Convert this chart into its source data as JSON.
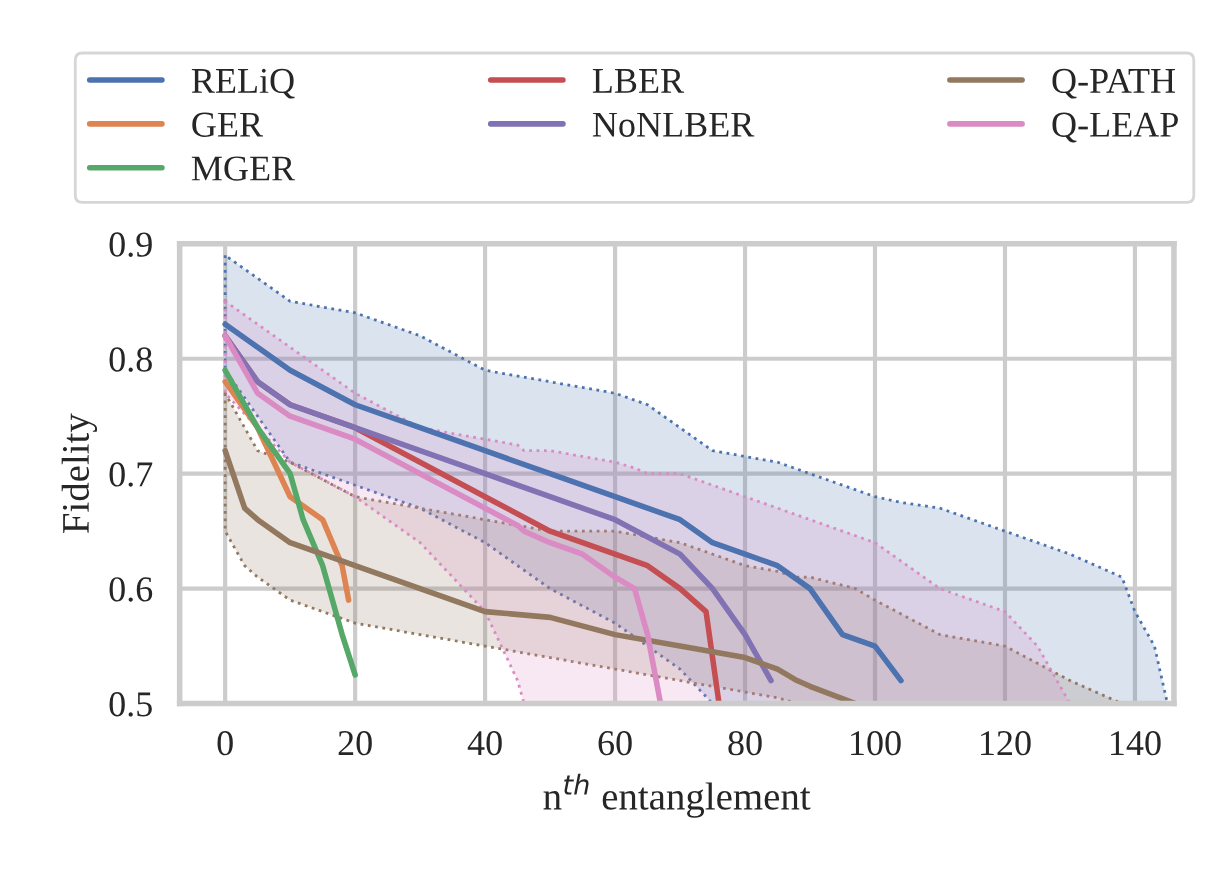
{
  "chart_data": {
    "type": "line",
    "xlabel": "n$^{th}$ entanglement",
    "ylabel": "Fidelity",
    "xlim": [
      -7,
      146
    ],
    "ylim": [
      0.5,
      0.9
    ],
    "xticks": [
      0,
      20,
      40,
      60,
      80,
      100,
      120,
      140
    ],
    "yticks": [
      0.5,
      0.6,
      0.7,
      0.8,
      0.9
    ],
    "grid": true,
    "legend": "top",
    "line_style": "solid",
    "marker": "none",
    "series": [
      {
        "name": "RELiQ",
        "color": "#4c72b0",
        "x": [
          0,
          5,
          10,
          20,
          30,
          40,
          50,
          60,
          65,
          70,
          75,
          80,
          85,
          90,
          95,
          100,
          104,
          110,
          120,
          130,
          138,
          140,
          143,
          145
        ],
        "values": [
          0.83,
          0.81,
          0.79,
          0.76,
          0.74,
          0.72,
          0.7,
          0.68,
          0.67,
          0.66,
          0.64,
          0.63,
          0.62,
          0.6,
          0.56,
          0.55,
          0.52,
          null,
          null,
          null,
          null,
          null,
          null,
          null
        ],
        "upper": [
          0.89,
          0.87,
          0.85,
          0.84,
          0.82,
          0.79,
          0.78,
          0.77,
          0.76,
          0.74,
          0.72,
          0.715,
          0.71,
          0.7,
          0.69,
          0.68,
          0.675,
          0.67,
          0.65,
          0.63,
          0.61,
          0.58,
          0.55,
          0.5
        ],
        "lower": [
          0.79,
          0.75,
          0.71,
          0.69,
          0.67,
          0.64,
          0.6,
          0.57,
          0.55,
          0.53,
          0.5,
          0.5,
          0.5,
          0.5,
          0.5,
          0.5,
          0.5,
          0.5,
          0.5,
          0.5,
          0.5,
          0.5,
          0.5,
          0.5
        ]
      },
      {
        "name": "GER",
        "color": "#dd8452",
        "x": [
          0,
          5,
          10,
          15,
          18,
          19
        ],
        "values": [
          0.78,
          0.74,
          0.68,
          0.66,
          0.62,
          0.59
        ]
      },
      {
        "name": "MGER",
        "color": "#55a868",
        "x": [
          0,
          5,
          10,
          12,
          15,
          18,
          20
        ],
        "values": [
          0.79,
          0.74,
          0.7,
          0.66,
          0.62,
          0.56,
          0.525
        ]
      },
      {
        "name": "LBER",
        "color": "#c44e52",
        "x": [
          0,
          5,
          10,
          20,
          30,
          40,
          50,
          60,
          65,
          70,
          74,
          76
        ],
        "values": [
          0.82,
          0.78,
          0.76,
          0.74,
          0.71,
          0.68,
          0.65,
          0.63,
          0.62,
          0.6,
          0.58,
          0.5
        ]
      },
      {
        "name": "NoNLBER",
        "color": "#8172b3",
        "x": [
          0,
          5,
          10,
          20,
          30,
          40,
          50,
          60,
          70,
          75,
          80,
          84
        ],
        "values": [
          0.82,
          0.78,
          0.76,
          0.74,
          0.72,
          0.7,
          0.68,
          0.66,
          0.63,
          0.6,
          0.56,
          0.52
        ]
      },
      {
        "name": "Q-PATH",
        "color": "#937860",
        "x": [
          0,
          3,
          5,
          10,
          20,
          30,
          40,
          50,
          60,
          70,
          80,
          85,
          88,
          90,
          97,
          100,
          110,
          120,
          130,
          138
        ],
        "values": [
          0.72,
          0.67,
          0.66,
          0.64,
          0.62,
          0.6,
          0.58,
          0.575,
          0.56,
          0.55,
          0.54,
          0.53,
          0.52,
          0.515,
          0.5,
          null,
          null,
          null,
          null,
          null
        ],
        "upper": [
          0.77,
          0.74,
          0.72,
          0.71,
          0.68,
          0.67,
          0.66,
          0.65,
          0.65,
          0.64,
          0.62,
          0.615,
          0.61,
          0.61,
          0.6,
          0.59,
          0.56,
          0.55,
          0.52,
          0.5
        ],
        "lower": [
          0.65,
          0.62,
          0.61,
          0.59,
          0.57,
          0.56,
          0.55,
          0.54,
          0.53,
          0.52,
          0.51,
          0.505,
          0.5,
          0.5,
          0.5,
          0.5,
          0.5,
          0.5,
          0.5,
          0.5
        ]
      },
      {
        "name": "Q-LEAP",
        "color": "#da8bc3",
        "x": [
          0,
          5,
          10,
          20,
          30,
          40,
          45,
          46,
          50,
          55,
          60,
          63,
          65,
          67,
          70,
          80,
          90,
          100,
          110,
          120,
          125,
          130
        ],
        "values": [
          0.82,
          0.77,
          0.75,
          0.73,
          0.7,
          0.67,
          0.655,
          0.65,
          0.64,
          0.63,
          0.61,
          0.6,
          0.56,
          0.5,
          null,
          null,
          null,
          null,
          null,
          null,
          null,
          null
        ],
        "upper": [
          0.85,
          0.83,
          0.81,
          0.77,
          0.74,
          0.73,
          0.725,
          0.72,
          0.72,
          0.715,
          0.71,
          0.705,
          0.7,
          0.7,
          0.7,
          0.68,
          0.66,
          0.64,
          0.6,
          0.58,
          0.55,
          0.5
        ],
        "lower": [
          0.77,
          0.74,
          0.71,
          0.68,
          0.64,
          0.58,
          0.52,
          0.5,
          0.5,
          0.5,
          0.5,
          0.5,
          0.5,
          0.5,
          0.5,
          0.5,
          0.5,
          0.5,
          0.5,
          0.5,
          0.5,
          0.5
        ]
      }
    ]
  }
}
